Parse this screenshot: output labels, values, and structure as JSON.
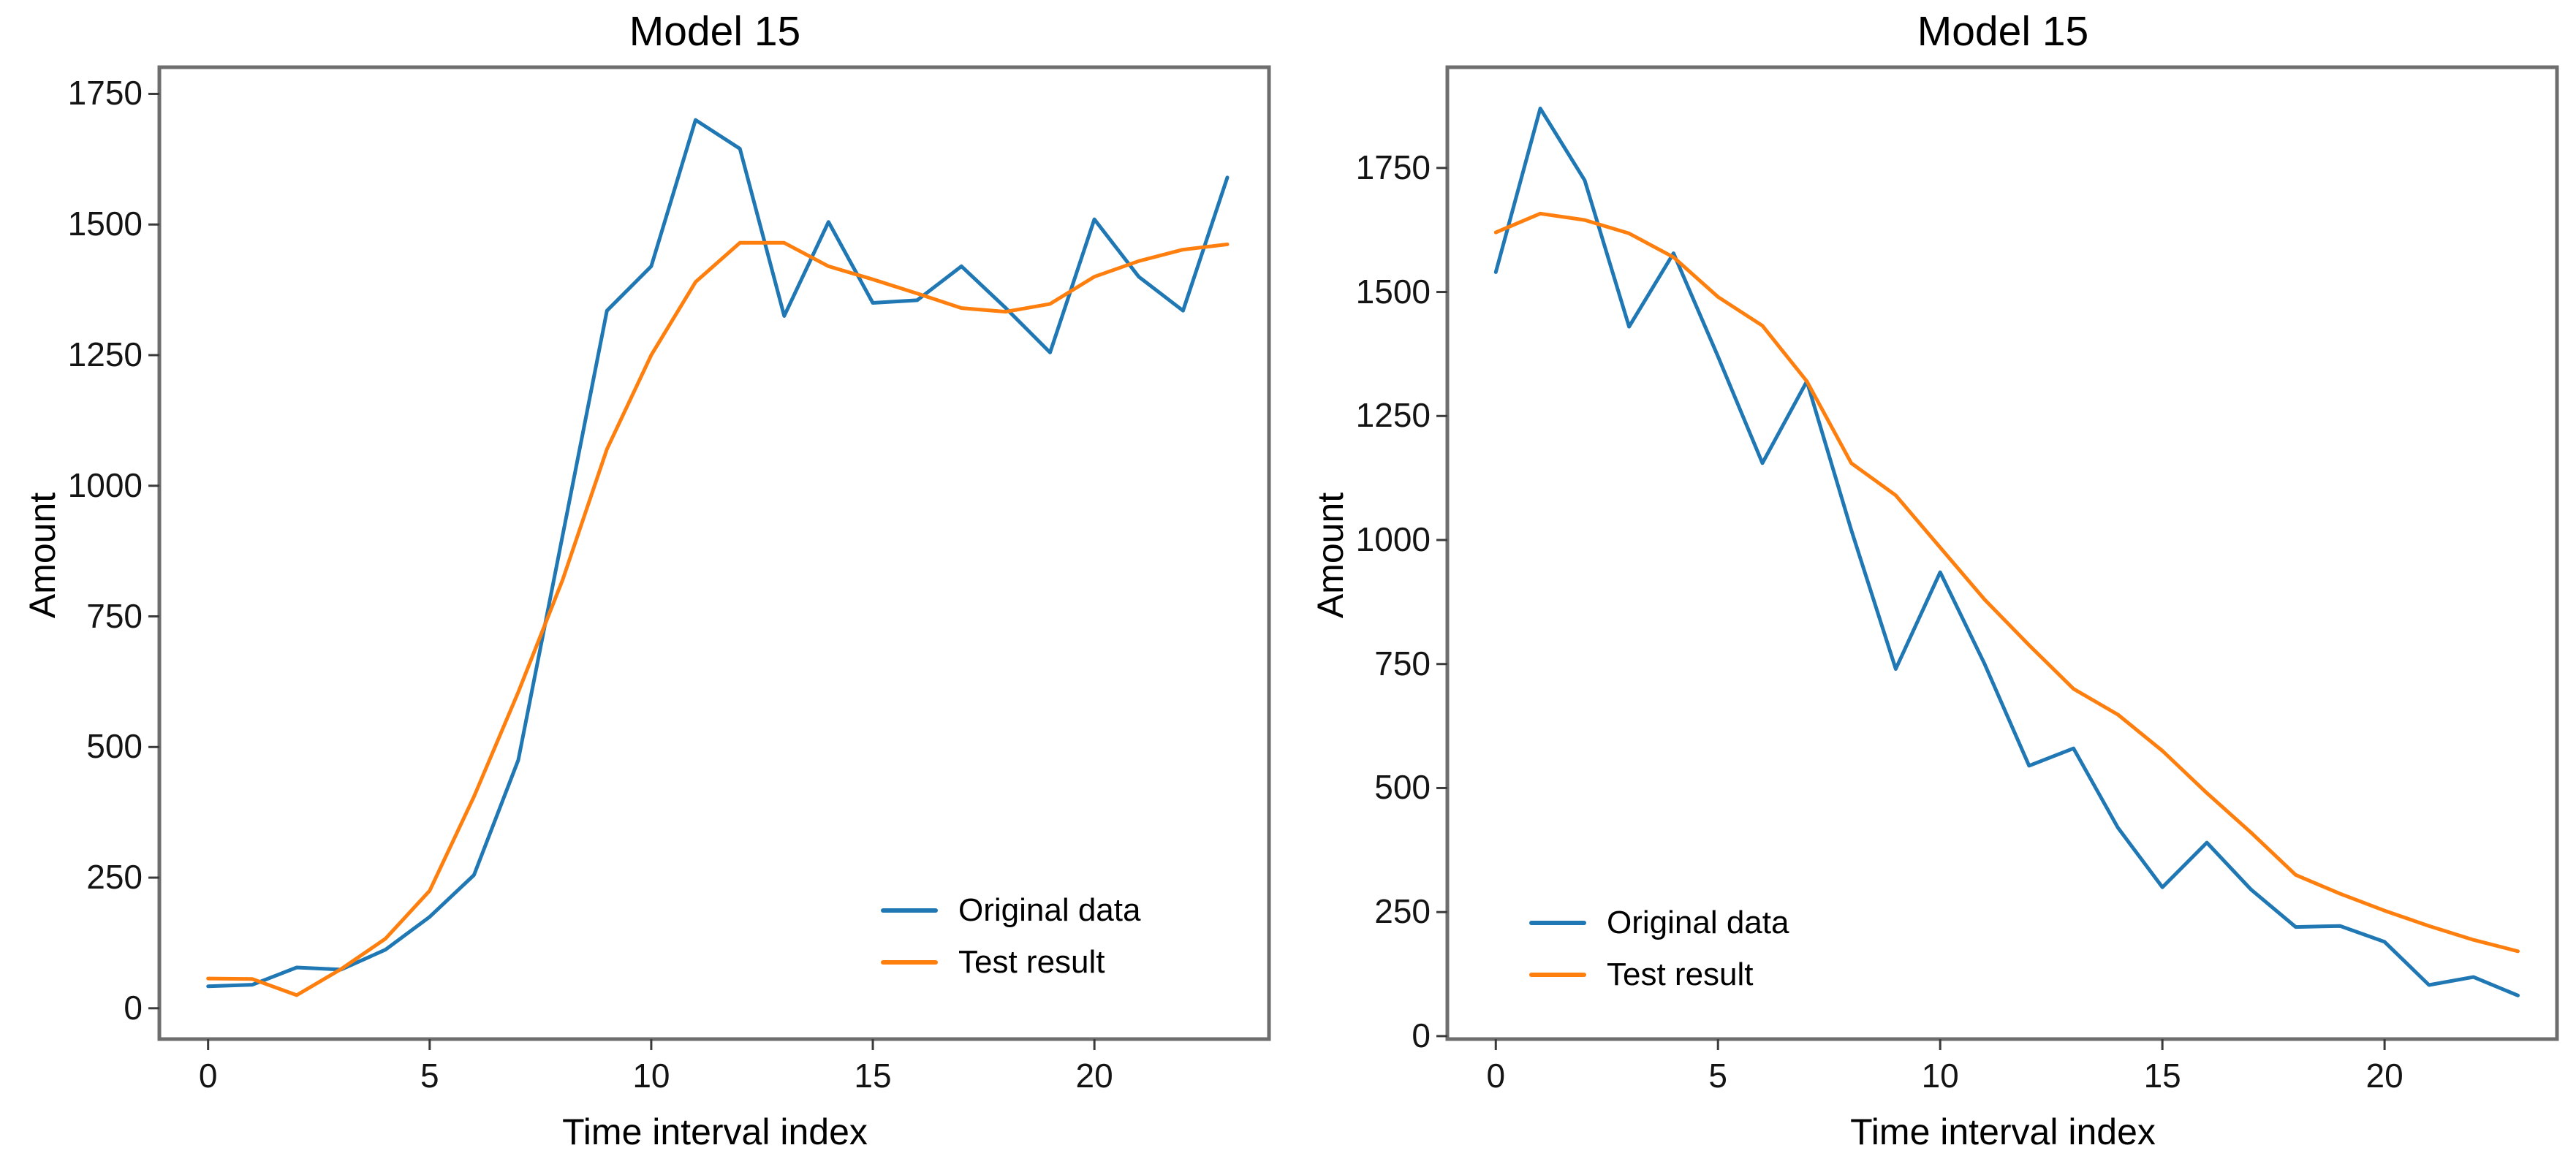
{
  "figure": {
    "background": "#ffffff"
  },
  "colors": {
    "original_data": "#1f77b4",
    "test_result": "#ff7f0e",
    "spine": "#6e6e6e",
    "tick": "#3a3a3a",
    "text": "#000000"
  },
  "chart_data": [
    {
      "type": "line",
      "title": "Model 15",
      "xlabel": "Time interval index",
      "ylabel": "Amount",
      "x": [
        0,
        1,
        2,
        3,
        4,
        5,
        6,
        7,
        8,
        9,
        10,
        11,
        12,
        13,
        14,
        15,
        16,
        17,
        18,
        19,
        20,
        21,
        22,
        23
      ],
      "xticks": [
        0,
        5,
        10,
        15,
        20
      ],
      "yticks": [
        0,
        250,
        500,
        750,
        1000,
        1250,
        1500,
        1750
      ],
      "xlim": [
        -1.1,
        23.94
      ],
      "ylim": [
        -59,
        1801
      ],
      "grid": false,
      "legend_position": "lower right",
      "series": [
        {
          "name": "Original data",
          "color": "#1f77b4",
          "values": [
            42,
            45,
            78,
            74,
            112,
            175,
            255,
            475,
            905,
            1335,
            1420,
            1700,
            1645,
            1325,
            1505,
            1350,
            1355,
            1420,
            1340,
            1255,
            1510,
            1400,
            1335,
            1590
          ]
        },
        {
          "name": "Test result",
          "color": "#ff7f0e",
          "values": [
            57,
            56,
            25,
            75,
            133,
            225,
            405,
            605,
            820,
            1070,
            1250,
            1390,
            1465,
            1465,
            1420,
            1395,
            1368,
            1340,
            1333,
            1348,
            1400,
            1430,
            1452,
            1462
          ]
        }
      ]
    },
    {
      "type": "line",
      "title": "Model 15",
      "xlabel": "Time interval index",
      "ylabel": "Amount",
      "x": [
        0,
        1,
        2,
        3,
        4,
        5,
        6,
        7,
        8,
        9,
        10,
        11,
        12,
        13,
        14,
        15,
        16,
        17,
        18,
        19,
        20,
        21,
        22,
        23
      ],
      "xticks": [
        0,
        5,
        10,
        15,
        20
      ],
      "yticks": [
        0,
        250,
        500,
        750,
        1000,
        1250,
        1500,
        1750
      ],
      "xlim": [
        -1.09,
        23.88
      ],
      "ylim": [
        -6,
        1953
      ],
      "grid": false,
      "legend_position": "lower left",
      "series": [
        {
          "name": "Original data",
          "color": "#1f77b4",
          "values": [
            1540,
            1870,
            1725,
            1430,
            1578,
            1370,
            1155,
            1320,
            1020,
            740,
            935,
            750,
            545,
            580,
            420,
            300,
            390,
            295,
            220,
            222,
            190,
            103,
            119,
            82
          ]
        },
        {
          "name": "Test result",
          "color": "#ff7f0e",
          "values": [
            1620,
            1658,
            1645,
            1618,
            1570,
            1490,
            1432,
            1320,
            1155,
            1090,
            985,
            880,
            788,
            700,
            648,
            575,
            490,
            410,
            325,
            287,
            253,
            222,
            194,
            171
          ]
        }
      ]
    }
  ]
}
